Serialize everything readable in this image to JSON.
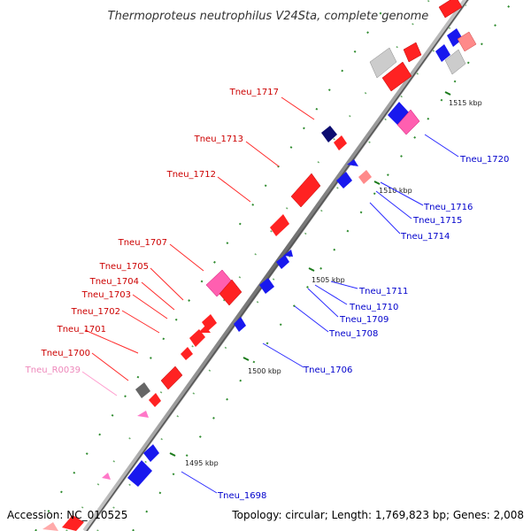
{
  "title": "Thermoproteus neutrophilus V24Sta, complete genome",
  "accession": "Accession: NC_010525",
  "topology": "Topology: circular; Length: 1,769,823 bp; Genes: 2,008",
  "colors": {
    "forward": "#ff1a1a",
    "reverse": "#1010f0",
    "rna": "#ff77c8",
    "other": "#bbbbbb",
    "label_forward": "#cc0000",
    "label_reverse": "#0000cc",
    "label_rna": "#ee88bb"
  },
  "ticks": [
    "1495 kbp",
    "1500 kbp",
    "1505 kbp",
    "1510 kbp",
    "1515 kbp"
  ],
  "left_labels": [
    "Tneu_1717",
    "Tneu_1713",
    "Tneu_1712",
    "Tneu_1707",
    "Tneu_1705",
    "Tneu_1704",
    "Tneu_1703",
    "Tneu_1702",
    "Tneu_1701",
    "Tneu_1700",
    "Tneu_R0039"
  ],
  "right_labels": [
    "Tneu_1720",
    "Tneu_1716",
    "Tneu_1715",
    "Tneu_1714",
    "Tneu_1711",
    "Tneu_1710",
    "Tneu_1709",
    "Tneu_1708",
    "Tneu_1706",
    "Tneu_1698"
  ]
}
